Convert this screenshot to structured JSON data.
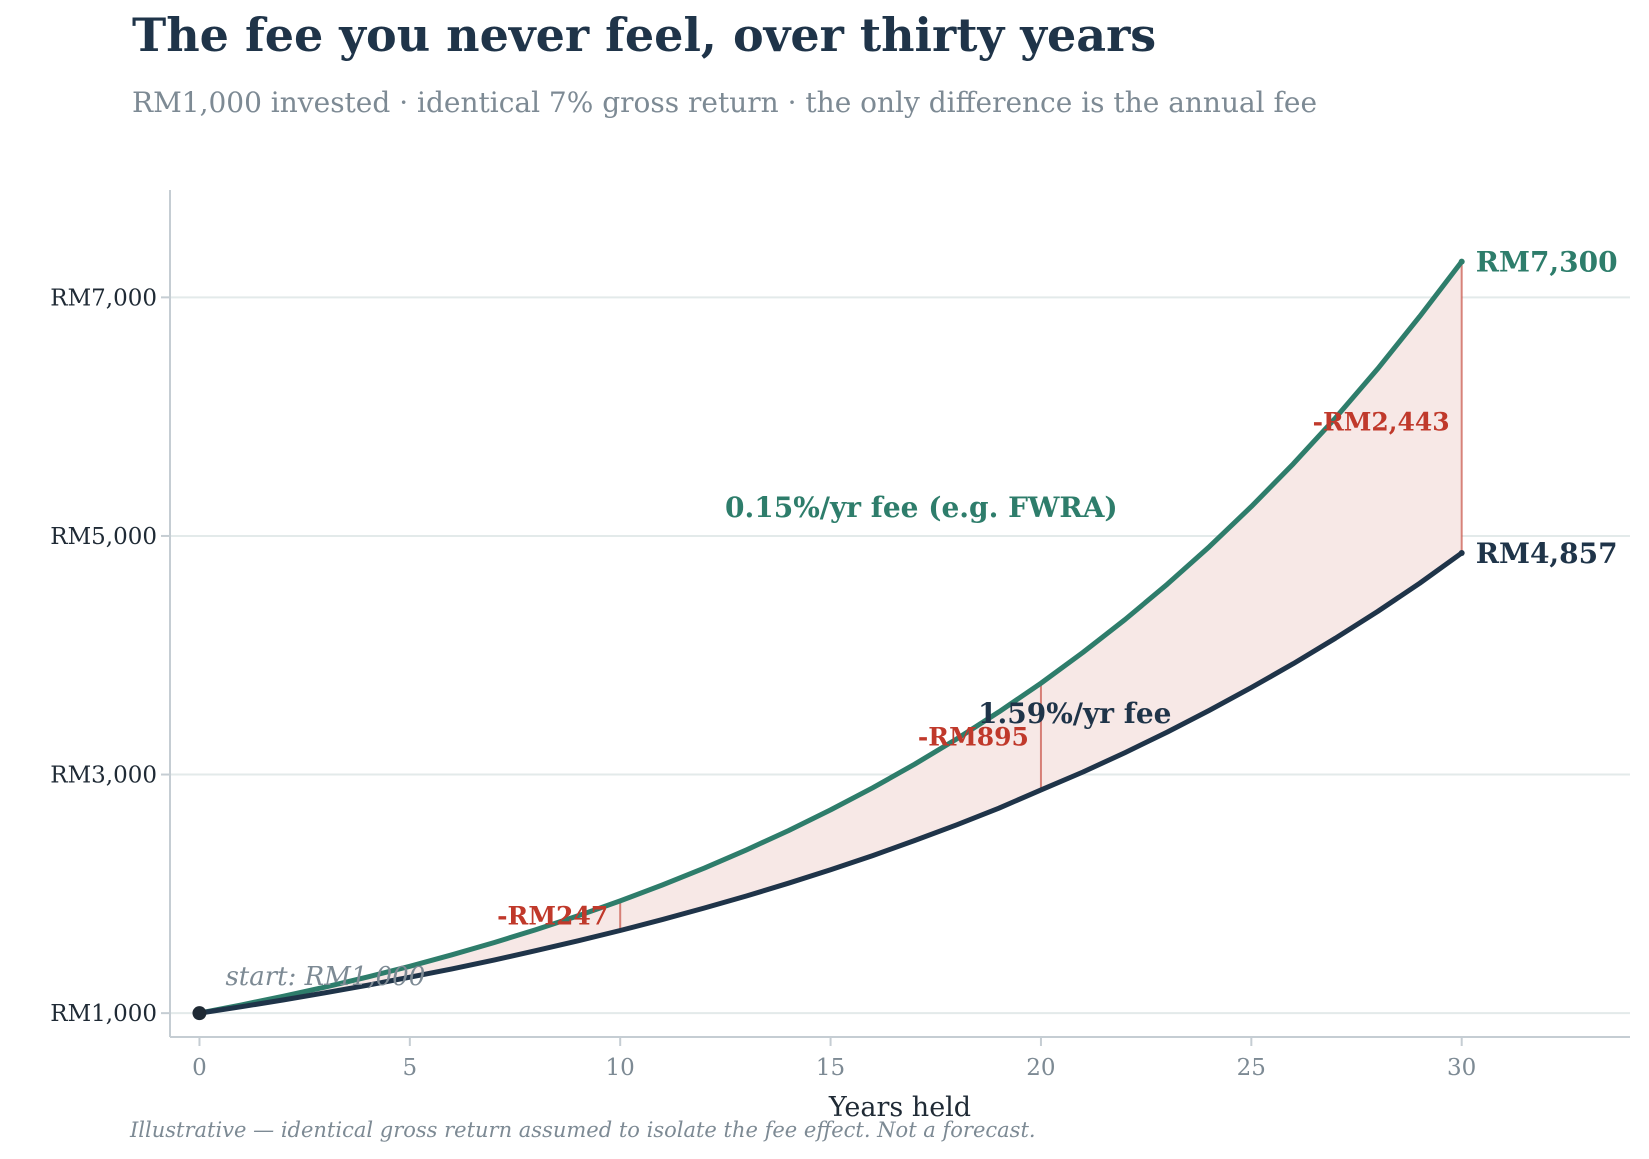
{
  "title": "The fee you never feel, over thirty years",
  "subtitle": "RM1,000 invested · identical 7% gross return · the only difference is the annual fee",
  "footnote": "Illustrative — identical gross return assumed to isolate the fee effect. Not a forecast.",
  "colors": {
    "low_fee": "#2e7d6b",
    "high_fee": "#1f3449",
    "gap": "#c0392b",
    "gap_fill": "#f7e8e6",
    "grid": "#e3eaea",
    "axis": "#c5cdd3"
  },
  "chart_data": {
    "type": "line",
    "xlabel": "Years held",
    "ylabel": "",
    "xlim": [
      -0.7,
      34
    ],
    "ylim": [
      800,
      7900
    ],
    "x_ticks": [
      0,
      5,
      10,
      15,
      20,
      25,
      30
    ],
    "y_ticks": [
      1000,
      3000,
      5000,
      7000
    ],
    "y_tick_labels": [
      "RM1,000",
      "RM3,000",
      "RM5,000",
      "RM7,000"
    ],
    "grid": "horizontal",
    "start_point": {
      "x": 0,
      "y": 1000,
      "label": "start: RM1,000"
    },
    "series": [
      {
        "name": "0.15%/yr fee  (e.g. FWRA)",
        "color": "#2e7d6b",
        "x": [
          0,
          1,
          2,
          3,
          4,
          5,
          6,
          7,
          8,
          9,
          10,
          11,
          12,
          13,
          14,
          15,
          16,
          17,
          18,
          19,
          20,
          21,
          22,
          23,
          24,
          25,
          26,
          27,
          28,
          29,
          30
        ],
        "y": [
          1000,
          1069,
          1142,
          1220,
          1304,
          1393,
          1489,
          1591,
          1700,
          1816,
          1941,
          2074,
          2216,
          2368,
          2530,
          2704,
          2889,
          3087,
          3299,
          3525,
          3766,
          4024,
          4300,
          4595,
          4910,
          5246,
          5606,
          5990,
          6400,
          6839,
          7300
        ],
        "end_label": "RM7,300"
      },
      {
        "name": "1.59%/yr fee",
        "color": "#1f3449",
        "x": [
          0,
          1,
          2,
          3,
          4,
          5,
          6,
          7,
          8,
          9,
          10,
          11,
          12,
          13,
          14,
          15,
          16,
          17,
          18,
          19,
          20,
          21,
          22,
          23,
          24,
          25,
          26,
          27,
          28,
          29,
          30
        ],
        "y": [
          1000,
          1054,
          1111,
          1171,
          1234,
          1301,
          1371,
          1445,
          1524,
          1606,
          1693,
          1784,
          1881,
          1982,
          2089,
          2202,
          2321,
          2447,
          2579,
          2718,
          2871,
          3021,
          3184,
          3356,
          3538,
          3729,
          3930,
          4143,
          4367,
          4603,
          4857
        ],
        "end_label": "RM4,857"
      }
    ],
    "gaps": [
      {
        "x": 10,
        "low": 1693,
        "high": 1941,
        "label": "-RM247"
      },
      {
        "x": 20,
        "low": 2871,
        "high": 3766,
        "label": "-RM895"
      },
      {
        "x": 30,
        "low": 4857,
        "high": 7300,
        "label": "-RM2,443"
      }
    ]
  }
}
